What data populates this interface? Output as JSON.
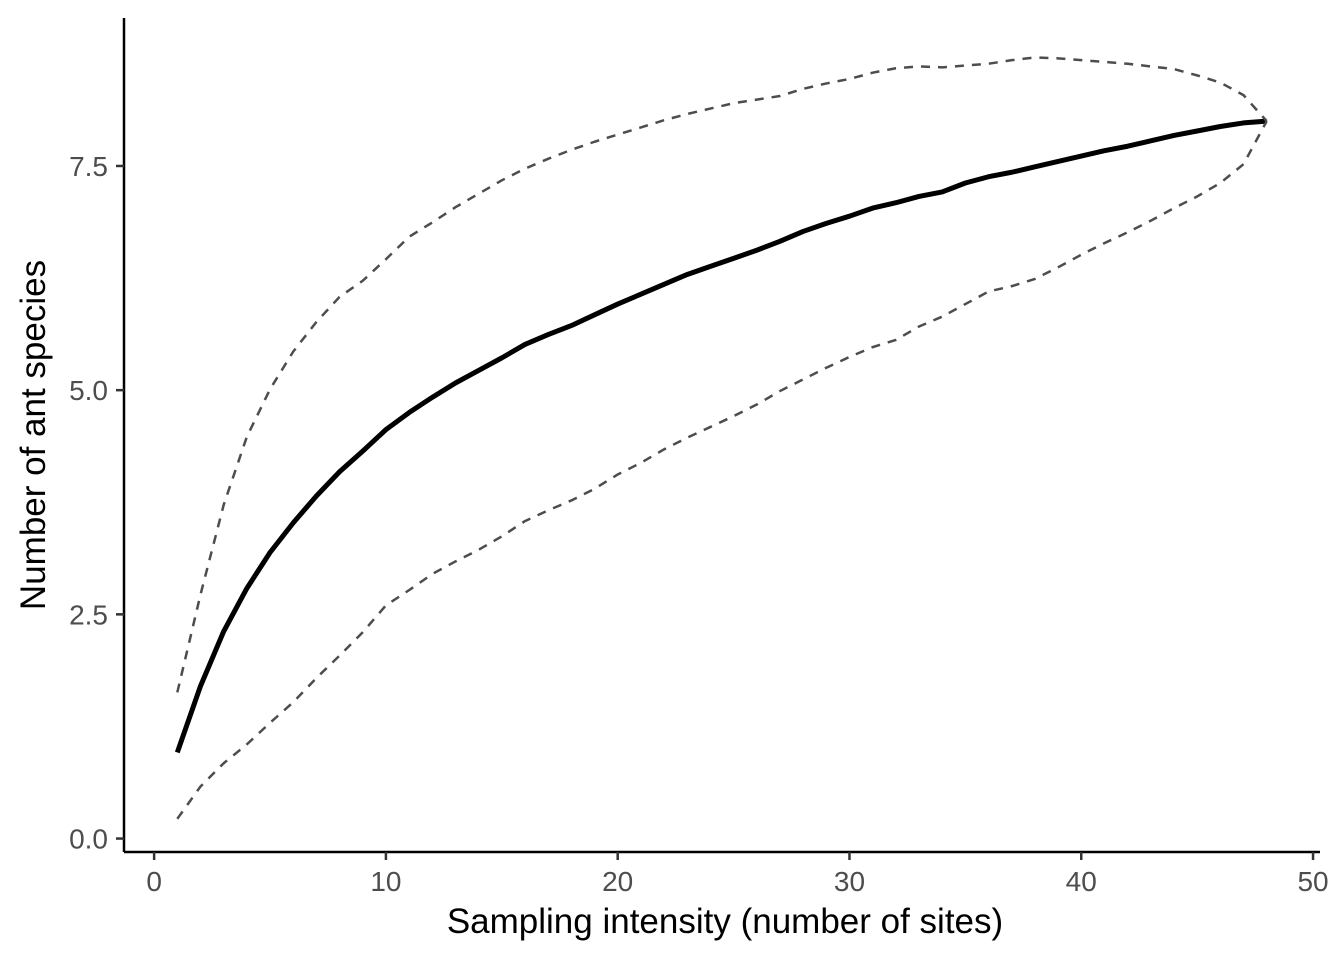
{
  "chart_data": {
    "type": "line",
    "title": "",
    "xlabel": "Sampling intensity (number of sites)",
    "ylabel": "Number of ant species",
    "xlim": [
      -1.3,
      50.3
    ],
    "ylim": [
      -0.15,
      9.15
    ],
    "x_ticks": [
      0,
      10,
      20,
      30,
      40,
      50
    ],
    "x_tick_labels": [
      "0",
      "10",
      "20",
      "30",
      "40",
      "50"
    ],
    "y_ticks": [
      0,
      2.5,
      5,
      7.5
    ],
    "y_tick_labels": [
      "0.0",
      "2.5",
      "5.0",
      "7.5"
    ],
    "grid": false,
    "legend": "none",
    "x": [
      1,
      2,
      3,
      4,
      5,
      6,
      7,
      8,
      9,
      10,
      11,
      12,
      13,
      14,
      15,
      16,
      17,
      18,
      19,
      20,
      21,
      22,
      23,
      24,
      25,
      26,
      27,
      28,
      29,
      30,
      31,
      32,
      33,
      34,
      35,
      36,
      37,
      38,
      39,
      40,
      41,
      42,
      43,
      44,
      45,
      46,
      47,
      48
    ],
    "series": [
      {
        "role": "mean",
        "style": "solid",
        "color": "#000000",
        "values": [
          0.96,
          1.7,
          2.31,
          2.79,
          3.19,
          3.52,
          3.82,
          4.09,
          4.32,
          4.56,
          4.75,
          4.92,
          5.08,
          5.22,
          5.36,
          5.51,
          5.62,
          5.72,
          5.84,
          5.96,
          6.07,
          6.18,
          6.29,
          6.38,
          6.47,
          6.56,
          6.66,
          6.77,
          6.86,
          6.94,
          7.03,
          7.09,
          7.16,
          7.21,
          7.31,
          7.38,
          7.43,
          7.49,
          7.55,
          7.61,
          7.67,
          7.72,
          7.78,
          7.84,
          7.89,
          7.94,
          7.98,
          8.0
        ]
      },
      {
        "role": "upper",
        "style": "dashed",
        "color": "#4d4d4d",
        "values": [
          1.63,
          2.72,
          3.72,
          4.48,
          5.01,
          5.43,
          5.76,
          6.04,
          6.22,
          6.46,
          6.71,
          6.87,
          7.04,
          7.19,
          7.34,
          7.47,
          7.58,
          7.68,
          7.77,
          7.85,
          7.93,
          8.01,
          8.08,
          8.14,
          8.2,
          8.24,
          8.28,
          8.36,
          8.42,
          8.47,
          8.54,
          8.59,
          8.61,
          8.6,
          8.62,
          8.64,
          8.68,
          8.71,
          8.7,
          8.68,
          8.66,
          8.64,
          8.61,
          8.58,
          8.51,
          8.43,
          8.29,
          8.0
        ]
      },
      {
        "role": "lower",
        "style": "dashed",
        "color": "#4d4d4d",
        "values": [
          0.22,
          0.58,
          0.84,
          1.05,
          1.29,
          1.52,
          1.79,
          2.04,
          2.3,
          2.6,
          2.77,
          2.95,
          3.09,
          3.22,
          3.37,
          3.54,
          3.66,
          3.77,
          3.9,
          4.06,
          4.19,
          4.34,
          4.47,
          4.59,
          4.71,
          4.84,
          4.99,
          5.12,
          5.25,
          5.37,
          5.48,
          5.56,
          5.71,
          5.82,
          5.96,
          6.1,
          6.16,
          6.24,
          6.37,
          6.51,
          6.64,
          6.76,
          6.89,
          7.03,
          7.16,
          7.31,
          7.52,
          8.0
        ]
      }
    ]
  }
}
